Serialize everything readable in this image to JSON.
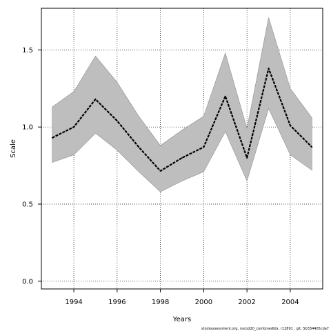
{
  "chart_data": {
    "type": "line",
    "title": "",
    "xlabel": "Years",
    "ylabel": "Scale",
    "xlim": [
      1992.5,
      2005.5
    ],
    "ylim": [
      -0.05,
      1.77
    ],
    "x_ticks": [
      1994,
      1996,
      1998,
      2000,
      2002,
      2004
    ],
    "x_tick_labels": [
      "1994",
      "1996",
      "1998",
      "2000",
      "2002",
      "2004"
    ],
    "y_ticks": [
      0.0,
      0.5,
      1.0,
      1.5
    ],
    "y_tick_labels": [
      "0.0",
      "0.5",
      "1.0",
      "1.5"
    ],
    "grid": true,
    "x": [
      1993,
      1994,
      1995,
      1996,
      1997,
      1998,
      1999,
      2000,
      2001,
      2002,
      2003,
      2004,
      2005
    ],
    "series": [
      {
        "values": [
          0.93,
          1.0,
          1.18,
          1.04,
          0.87,
          0.715,
          0.8,
          0.87,
          1.2,
          0.8,
          1.38,
          1.01,
          0.87
        ]
      }
    ],
    "band": {
      "lower": [
        0.77,
        0.82,
        0.96,
        0.85,
        0.71,
        0.58,
        0.65,
        0.71,
        0.97,
        0.65,
        1.12,
        0.82,
        0.72
      ],
      "upper": [
        1.13,
        1.23,
        1.46,
        1.29,
        1.07,
        0.88,
        0.98,
        1.07,
        1.48,
        0.99,
        1.71,
        1.25,
        1.06
      ]
    },
    "colors": {
      "band": "#bebebe",
      "band_edge": "#8c8c8c",
      "line": "#000000",
      "grid": "#000000"
    }
  },
  "footer": {
    "note": "stockassessment.org, nscod20_combinedIdx, r12891 , git: 5b334405cda7"
  }
}
